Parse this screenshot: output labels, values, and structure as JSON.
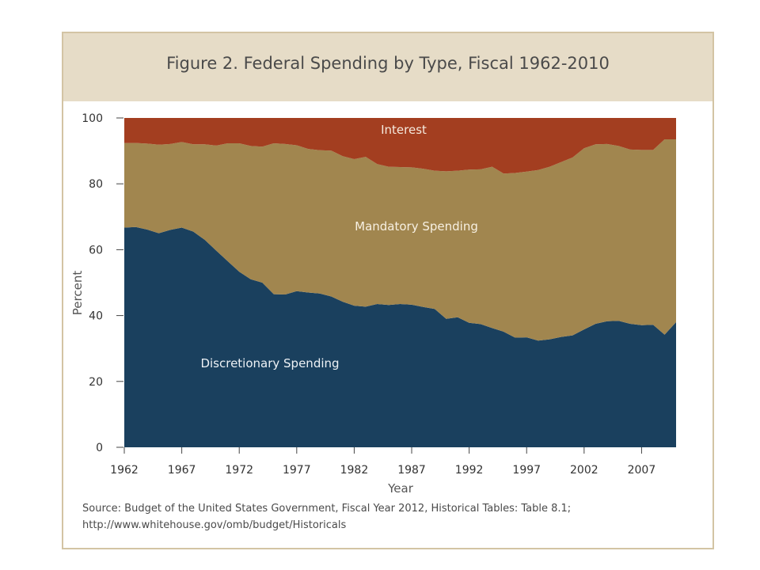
{
  "figure": {
    "title": "Figure 2. Federal Spending by Type, Fiscal 1962-2010",
    "source_line1": "Source: Budget of the United States Government,  Fiscal Year 2012, Historical Tables: Table 8.1;",
    "source_line2": "http://www.whitehouse.gov/omb/budget/Historicals"
  },
  "colors": {
    "discretionary": "#1a405e",
    "mandatory": "#a1864f",
    "interest": "#a33e20",
    "title_bar": "#e6dcc7",
    "frame": "#d3c4a4"
  },
  "chart_data": {
    "type": "area",
    "stacked": true,
    "xlabel": "Year",
    "ylabel": "Percent",
    "xlim": [
      1962,
      2010
    ],
    "ylim": [
      0,
      100
    ],
    "xticks": [
      "1962",
      "1967",
      "1972",
      "1977",
      "1982",
      "1987",
      "1992",
      "1997",
      "2002",
      "2007"
    ],
    "yticks": [
      "0",
      "20",
      "40",
      "60",
      "80",
      "100"
    ],
    "grid": false,
    "legend": "none (series labeled inside areas)",
    "x": [
      1962,
      1963,
      1964,
      1965,
      1966,
      1967,
      1968,
      1969,
      1970,
      1971,
      1972,
      1973,
      1974,
      1975,
      1976,
      1977,
      1978,
      1979,
      1980,
      1981,
      1982,
      1983,
      1984,
      1985,
      1986,
      1987,
      1988,
      1989,
      1990,
      1991,
      1992,
      1993,
      1994,
      1995,
      1996,
      1997,
      1998,
      1999,
      2000,
      2001,
      2002,
      2003,
      2004,
      2005,
      2006,
      2007,
      2008,
      2009,
      2010
    ],
    "series": [
      {
        "name": "Discretionary Spending",
        "values": [
          66.7,
          66.9,
          66.1,
          65.0,
          66.0,
          66.7,
          65.5,
          63.0,
          59.7,
          56.5,
          53.3,
          51.0,
          50.0,
          46.5,
          46.4,
          47.4,
          47.0,
          46.7,
          45.8,
          44.2,
          43.0,
          42.7,
          43.5,
          43.2,
          43.5,
          43.3,
          42.6,
          42.0,
          39.0,
          39.5,
          37.8,
          37.4,
          36.2,
          35.1,
          33.3,
          33.4,
          32.4,
          32.8,
          33.5,
          34.0,
          35.8,
          37.5,
          38.3,
          38.4,
          37.5,
          37.1,
          37.2,
          34.2,
          38.0
        ]
      },
      {
        "name": "Mandatory Spending",
        "values": [
          25.7,
          25.5,
          26.1,
          26.9,
          26.1,
          26.0,
          26.5,
          29.0,
          31.9,
          35.8,
          39.0,
          40.5,
          41.3,
          45.8,
          45.7,
          44.3,
          43.6,
          43.5,
          44.3,
          44.2,
          44.5,
          45.5,
          42.5,
          42.0,
          41.6,
          41.7,
          42.0,
          42.0,
          44.8,
          44.5,
          46.5,
          47.0,
          49.0,
          48.0,
          50.0,
          50.3,
          51.8,
          52.4,
          53.1,
          54.0,
          55.0,
          54.5,
          53.8,
          53.1,
          52.9,
          53.2,
          53.1,
          59.3,
          55.5
        ]
      },
      {
        "name": "Interest",
        "values": [
          7.6,
          7.6,
          7.8,
          8.1,
          7.9,
          7.3,
          8.0,
          8.0,
          8.4,
          7.7,
          7.7,
          8.5,
          8.7,
          7.7,
          7.9,
          8.3,
          9.4,
          9.8,
          9.9,
          11.6,
          12.5,
          11.8,
          14.0,
          14.8,
          14.9,
          15.0,
          15.4,
          16.0,
          16.2,
          16.0,
          15.7,
          15.6,
          14.8,
          16.9,
          16.7,
          16.3,
          15.8,
          14.8,
          13.4,
          12.0,
          9.2,
          8.0,
          7.9,
          8.5,
          9.6,
          9.7,
          9.7,
          6.5,
          6.5
        ]
      }
    ],
    "labels": {
      "discretionary": "Discretionary Spending",
      "mandatory": "Mandatory Spending",
      "interest": "Interest"
    }
  }
}
